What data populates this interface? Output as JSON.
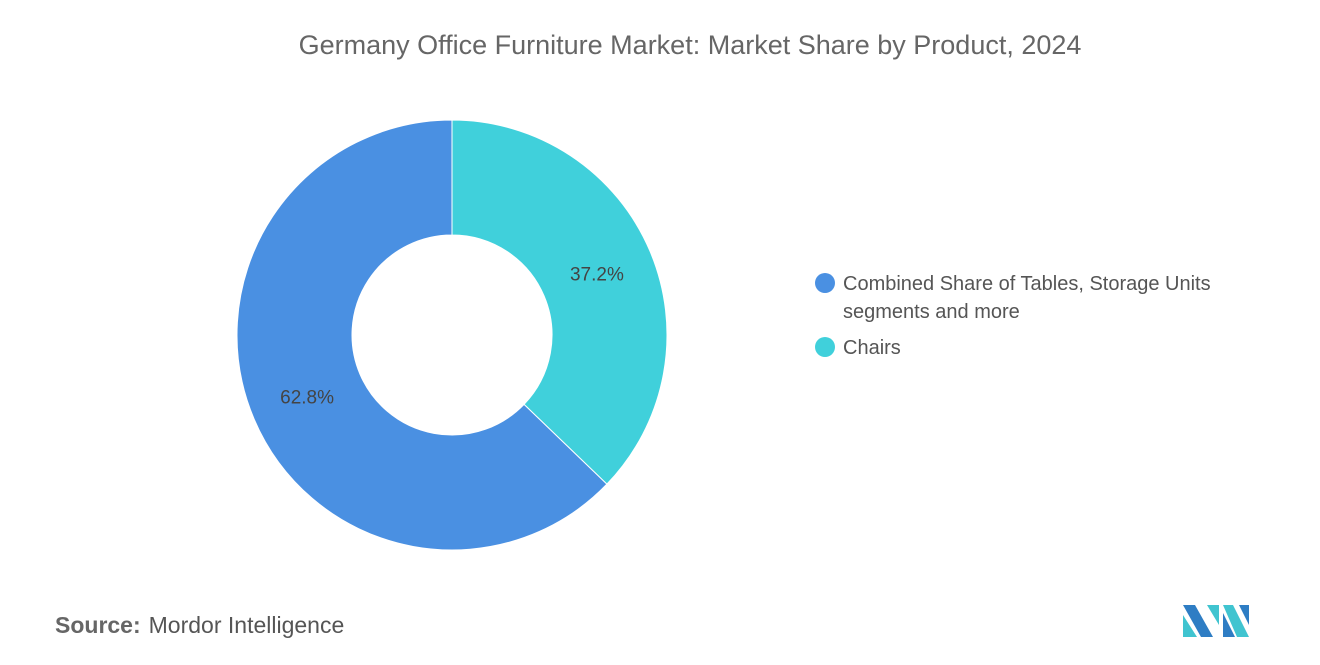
{
  "chart_data": {
    "type": "pie",
    "variant": "donut",
    "title": "Germany Office Furniture Market: Market Share by Product, 2024",
    "slices": [
      {
        "name": "Chairs",
        "value": 37.2,
        "label": "37.2%",
        "color": "#40D0DB"
      },
      {
        "name": "Combined Share of Tables, Storage Units segments and more",
        "value": 62.8,
        "label": "62.8%",
        "color": "#4A90E2"
      }
    ],
    "legend_position": "right"
  },
  "legend": [
    {
      "label": "Combined Share of Tables, Storage Units segments and more",
      "color": "#4A90E2"
    },
    {
      "label": "Chairs",
      "color": "#40D0DB"
    }
  ],
  "source": {
    "label": "Source:",
    "value": "Mordor Intelligence"
  },
  "logo": {
    "text": "Mordor Intelligence"
  }
}
